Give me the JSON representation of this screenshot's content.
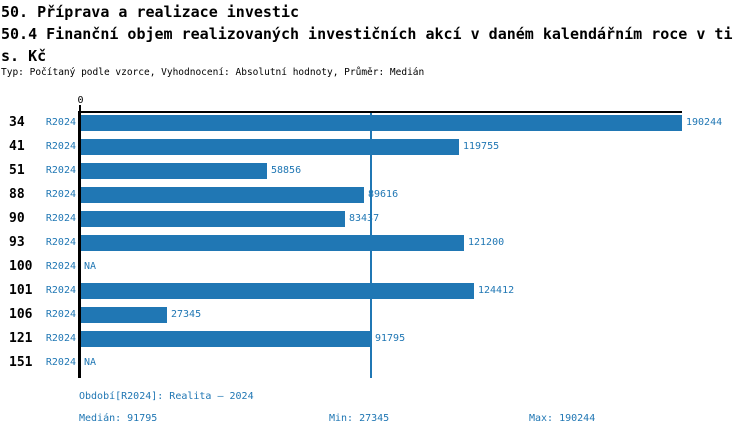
{
  "title": {
    "lines": [
      "50. Příprava a realizace investic",
      "50.4 Finanční objem realizovaných investičních akcí v daném kalendářním roce v ti",
      "s. Kč"
    ]
  },
  "subtitle": "Typ: Počítaný podle vzorce, Vyhodnocení: Absolutní hodnoty, Průměr: Medián",
  "chart_data": {
    "type": "bar",
    "orientation": "horizontal",
    "title": "50.4 Finanční objem realizovaných investičních akcí v daném kalendářním roce v tis. Kč",
    "unit": "tis. Kč",
    "axis_zero_label": "0",
    "xlim": [
      0,
      190244
    ],
    "grid": false,
    "bar_color": "#2077b4",
    "median_reference_line": 91795,
    "categories": [
      "34",
      "41",
      "51",
      "88",
      "90",
      "93",
      "100",
      "101",
      "106",
      "121",
      "151"
    ],
    "series": [
      {
        "name": "R2024",
        "values": [
          190244,
          119755,
          58856,
          89616,
          83437,
          121200,
          null,
          124412,
          27345,
          91795,
          null
        ]
      }
    ],
    "rows": [
      {
        "category": "34",
        "series": "R2024",
        "value": 190244,
        "value_label": "190244"
      },
      {
        "category": "41",
        "series": "R2024",
        "value": 119755,
        "value_label": "119755"
      },
      {
        "category": "51",
        "series": "R2024",
        "value": 58856,
        "value_label": "58856"
      },
      {
        "category": "88",
        "series": "R2024",
        "value": 89616,
        "value_label": "89616"
      },
      {
        "category": "90",
        "series": "R2024",
        "value": 83437,
        "value_label": "83437"
      },
      {
        "category": "93",
        "series": "R2024",
        "value": 121200,
        "value_label": "121200"
      },
      {
        "category": "100",
        "series": "R2024",
        "value": null,
        "value_label": "NA"
      },
      {
        "category": "101",
        "series": "R2024",
        "value": 124412,
        "value_label": "124412"
      },
      {
        "category": "106",
        "series": "R2024",
        "value": 27345,
        "value_label": "27345"
      },
      {
        "category": "121",
        "series": "R2024",
        "value": 91795,
        "value_label": "91795"
      },
      {
        "category": "151",
        "series": "R2024",
        "value": null,
        "value_label": "NA"
      }
    ],
    "stats": {
      "median": 91795,
      "min": 27345,
      "max": 190244
    }
  },
  "footer": {
    "period": "Období[R2024]: Realita – 2024",
    "median": "Medián: 91795",
    "min": "Min: 27345",
    "max": "Max: 190244"
  },
  "colors": {
    "bar_blue": "#2077b4",
    "text_blue": "#2077b4",
    "axis_black": "#000000",
    "background": "#ffffff"
  }
}
